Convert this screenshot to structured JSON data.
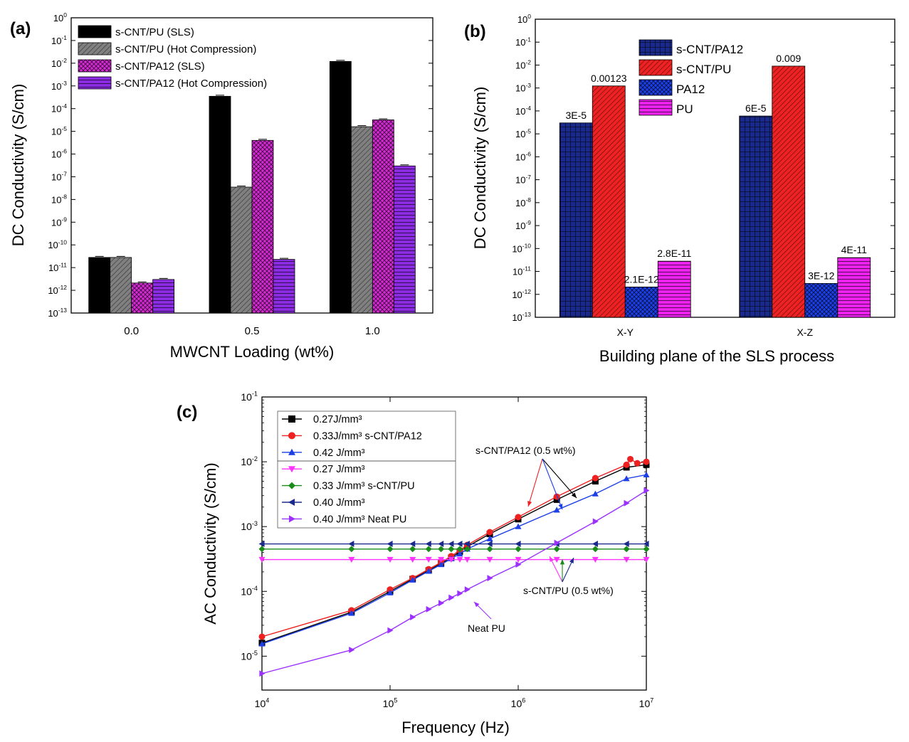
{
  "chart_data": [
    {
      "panel_label": "(a)",
      "type": "bar",
      "xlabel": "MWCNT Loading (wt%)",
      "ylabel": "DC Conductivity (S/cm)",
      "yscale": "log",
      "ylim": [
        1e-13,
        1
      ],
      "ytick_exponents": [
        -13,
        -12,
        -11,
        -10,
        -9,
        -8,
        -7,
        -6,
        -5,
        -4,
        -3,
        -2,
        -1,
        0
      ],
      "categories": [
        "0.0",
        "0.5",
        "1.0"
      ],
      "legend_position": "top-left",
      "series": [
        {
          "name": "s-CNT/PU (SLS)",
          "color": "#000000",
          "pattern": "solid",
          "values": [
            2.8e-11,
            0.00035,
            0.012
          ]
        },
        {
          "name": "s-CNT/PU (Hot Compression)",
          "color": "#808080",
          "pattern": "diagonal",
          "values": [
            2.8e-11,
            3.5e-08,
            1.6e-05
          ]
        },
        {
          "name": "s-CNT/PA12 (SLS)",
          "color": "#d42ad4",
          "pattern": "crosshatch",
          "values": [
            2.1e-12,
            4e-06,
            3.2e-05
          ]
        },
        {
          "name": "s-CNT/PA12 (Hot Compression)",
          "color": "#8b2be2",
          "pattern": "horizontal",
          "values": [
            3e-12,
            2.3e-11,
            3e-07
          ]
        }
      ]
    },
    {
      "panel_label": "(b)",
      "type": "bar",
      "xlabel": "Building plane of the SLS process",
      "ylabel": "DC Conductivity (S/cm)",
      "yscale": "log",
      "ylim": [
        1e-13,
        1
      ],
      "ytick_exponents": [
        -13,
        -12,
        -11,
        -10,
        -9,
        -8,
        -7,
        -6,
        -5,
        -4,
        -3,
        -2,
        -1,
        0
      ],
      "categories": [
        "X-Y",
        "X-Z"
      ],
      "legend_position": "top-center",
      "series": [
        {
          "name": "s-CNT/PA12",
          "color": "#1a2a8c",
          "pattern": "grid",
          "values": [
            3e-05,
            6e-05
          ],
          "labels": [
            "3E-5",
            "6E-5"
          ]
        },
        {
          "name": "s-CNT/PU",
          "color": "#ee2222",
          "pattern": "diagonal",
          "values": [
            0.00123,
            0.009
          ],
          "labels": [
            "0.00123",
            "0.009"
          ]
        },
        {
          "name": "PA12",
          "color": "#1c3fe6",
          "pattern": "crosshatch",
          "values": [
            2.1e-12,
            3e-12
          ],
          "labels": [
            "2.1E-12",
            "3E-12"
          ]
        },
        {
          "name": "PU",
          "color": "#ee22ee",
          "pattern": "horizontal",
          "values": [
            2.8e-11,
            4e-11
          ],
          "labels": [
            "2.8E-11",
            "4E-11"
          ]
        }
      ]
    },
    {
      "panel_label": "(c)",
      "type": "line",
      "xlabel": "Frequency (Hz)",
      "ylabel": "AC Conductivity (S/cm)",
      "xscale": "log",
      "yscale": "log",
      "xlim": [
        10000.0,
        10000000.0
      ],
      "ylim": [
        3e-06,
        0.1
      ],
      "xtick_exponents": [
        4,
        5,
        6,
        7
      ],
      "ytick_exponents": [
        -5,
        -4,
        -3,
        -2,
        -1
      ],
      "legend_position": "top-left",
      "series": [
        {
          "name": "0.27J/mm³",
          "color": "#000000",
          "marker": "square",
          "x": [
            10000,
            50000,
            100000,
            150000,
            200000,
            250000,
            300000,
            350000,
            400000,
            600000,
            1000000,
            2000000,
            4000000,
            7000000,
            10000000
          ],
          "y": [
            1.6e-05,
            4.8e-05,
            0.0001,
            0.000155,
            0.00021,
            0.00027,
            0.00033,
            0.00041,
            0.00049,
            0.00077,
            0.0013,
            0.0026,
            0.005,
            0.0082,
            0.009
          ]
        },
        {
          "name": "0.33J/mm³ s-CNT/PA12",
          "color": "#ee2020",
          "marker": "circle",
          "x": [
            10000,
            50000,
            100000,
            150000,
            200000,
            250000,
            300000,
            350000,
            400000,
            600000,
            1000000,
            2000000,
            4000000,
            7000000,
            7500000,
            8500000,
            10000000
          ],
          "y": [
            2e-05,
            5.1e-05,
            0.000107,
            0.00016,
            0.00022,
            0.00028,
            0.00035,
            0.00043,
            0.00052,
            0.00082,
            0.0014,
            0.0029,
            0.0056,
            0.009,
            0.011,
            0.0095,
            0.01
          ]
        },
        {
          "name": "0.42 J/mm³",
          "color": "#1c3fe6",
          "marker": "triangle-up",
          "x": [
            10000,
            50000,
            100000,
            150000,
            200000,
            250000,
            300000,
            350000,
            400000,
            600000,
            1000000,
            2000000,
            4000000,
            7000000,
            10000000
          ],
          "y": [
            1.55e-05,
            4.6e-05,
            9.5e-05,
            0.00015,
            0.000205,
            0.00026,
            0.00032,
            0.00038,
            0.00045,
            0.00065,
            0.001,
            0.0018,
            0.0032,
            0.0055,
            0.0063
          ]
        },
        {
          "name": "0.27 J/mm³",
          "color": "#ff33ff",
          "marker": "triangle-down",
          "x": [
            10000,
            50000,
            100000,
            150000,
            200000,
            250000,
            300000,
            350000,
            400000,
            600000,
            1000000,
            2000000,
            4000000,
            7000000,
            10000000
          ],
          "y": [
            0.00031,
            0.00031,
            0.00031,
            0.00031,
            0.00031,
            0.00031,
            0.00031,
            0.00031,
            0.00031,
            0.00031,
            0.00031,
            0.00031,
            0.00031,
            0.00031,
            0.00031
          ]
        },
        {
          "name": "0.33 J/mm³ s-CNT/PU",
          "color": "#1a8c1a",
          "marker": "diamond",
          "x": [
            10000,
            50000,
            100000,
            150000,
            200000,
            250000,
            300000,
            350000,
            400000,
            600000,
            1000000,
            2000000,
            4000000,
            7000000,
            10000000
          ],
          "y": [
            0.00045,
            0.00045,
            0.00045,
            0.00045,
            0.00045,
            0.00045,
            0.00045,
            0.00045,
            0.00045,
            0.00045,
            0.00045,
            0.00045,
            0.00045,
            0.00045,
            0.00045
          ]
        },
        {
          "name": "0.40 J/mm³",
          "color": "#1a2a8c",
          "marker": "triangle-left",
          "x": [
            10000,
            50000,
            100000,
            150000,
            200000,
            250000,
            300000,
            350000,
            400000,
            600000,
            1000000,
            2000000,
            4000000,
            7000000,
            10000000
          ],
          "y": [
            0.00054,
            0.00054,
            0.00054,
            0.00054,
            0.00054,
            0.00054,
            0.00054,
            0.00054,
            0.00054,
            0.00054,
            0.00054,
            0.00054,
            0.00054,
            0.00054,
            0.00054
          ]
        },
        {
          "name": "0.40 J/mm³ Neat PU",
          "color": "#9b30ff",
          "marker": "triangle-right",
          "x": [
            10000,
            50000,
            100000,
            150000,
            200000,
            250000,
            300000,
            350000,
            400000,
            600000,
            1000000,
            2000000,
            4000000,
            7000000,
            10000000
          ],
          "y": [
            5.4e-06,
            1.25e-05,
            2.5e-05,
            4e-05,
            5.3e-05,
            6.6e-05,
            8e-05,
            9.3e-05,
            0.000107,
            0.00016,
            0.00026,
            0.00056,
            0.0012,
            0.0023,
            0.0036
          ]
        }
      ],
      "annotations": [
        {
          "text": "s-CNT/PA12 (0.5 wt%)"
        },
        {
          "text": "s-CNT/PU (0.5 wt%)"
        },
        {
          "text": "Neat PU"
        }
      ]
    }
  ]
}
